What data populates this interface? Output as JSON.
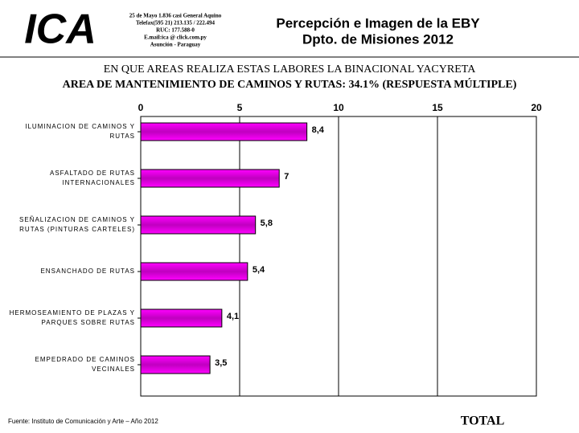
{
  "header": {
    "logo": "ICA",
    "address": [
      "25 de Mayo 1.836 casi General Aquino",
      "Telefax(595 21) 213.135 / 222.494",
      "RUC: 177.588-0",
      "E.mail:ica @ click.com.py",
      "Asunción - Paraguay"
    ],
    "title": [
      "Percepción e Imagen de la EBY",
      "Dpto. de Misiones 2012"
    ]
  },
  "chart_data": {
    "type": "hbar",
    "title": "EN QUE AREAS REALIZA ESTAS LABORES LA BINACIONAL YACYRETA",
    "subtitle": "AREA DE MANTENIMIENTO DE CAMINOS Y RUTAS: 34.1% (RESPUESTA MÚLTIPLE)",
    "categories": [
      "ILUMINACION DE CAMINOS Y\nRUTAS",
      "ASFALTADO DE RUTAS\nINTERNACIONALES",
      "SEÑALIZACION DE CAMINOS Y\nRUTAS (PINTURAS CARTELES)",
      "ENSANCHADO DE RUTAS",
      "HERMOSEAMIENTO DE PLAZAS Y\nPARQUES SOBRE RUTAS",
      "EMPEDRADO DE CAMINOS\nVECINALES"
    ],
    "values": [
      8.4,
      7,
      5.8,
      5.4,
      4.1,
      3.5
    ],
    "value_labels": [
      "8,4",
      "7",
      "5,8",
      "5,4",
      "4,1",
      "3,5"
    ],
    "color": "#ff00ff",
    "xlim": [
      0,
      20
    ],
    "xticks": [
      0,
      5,
      10,
      15,
      20
    ],
    "grid": true,
    "source": "Fuente: Instituto de Comunicación y Arte – Año 2012",
    "footer_label": "TOTAL"
  }
}
